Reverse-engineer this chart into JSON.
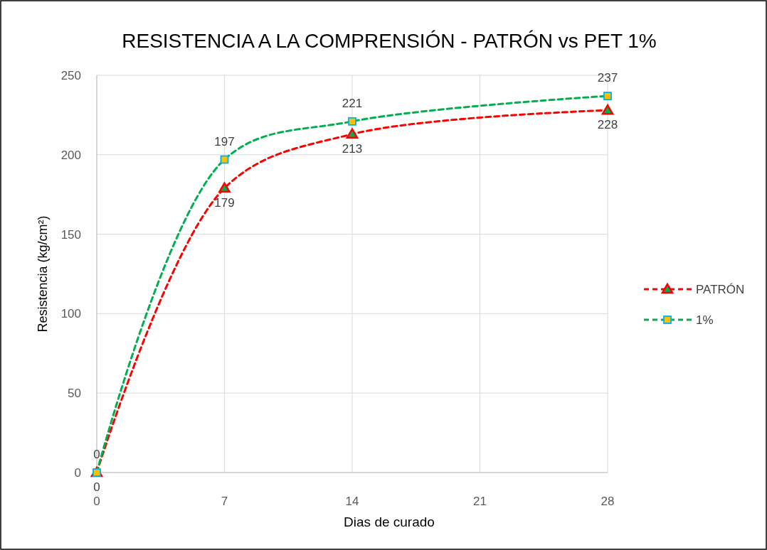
{
  "chart_data": {
    "type": "line",
    "title": "RESISTENCIA A LA COMPRENSIÓN - PATRÓN  vs PET 1%",
    "xlabel": "Dias de curado",
    "ylabel": "Resistencia  (kg/cm²)",
    "x": [
      0,
      7,
      14,
      28
    ],
    "series": [
      {
        "name": "PATRÓN",
        "color": "#ff0000",
        "marker": "triangle",
        "values": [
          0,
          179,
          213,
          228
        ]
      },
      {
        "name": "1%",
        "color": "#00b050",
        "marker": "square",
        "values": [
          0,
          197,
          221,
          237
        ]
      }
    ],
    "xlim": [
      0,
      28
    ],
    "xticks": [
      0,
      7,
      14,
      21,
      28
    ],
    "ylim": [
      0,
      250
    ],
    "yticks": [
      0,
      50,
      100,
      150,
      200,
      250
    ],
    "grid": true,
    "legend": "right",
    "data_labels": true,
    "line_style": "dashed"
  }
}
